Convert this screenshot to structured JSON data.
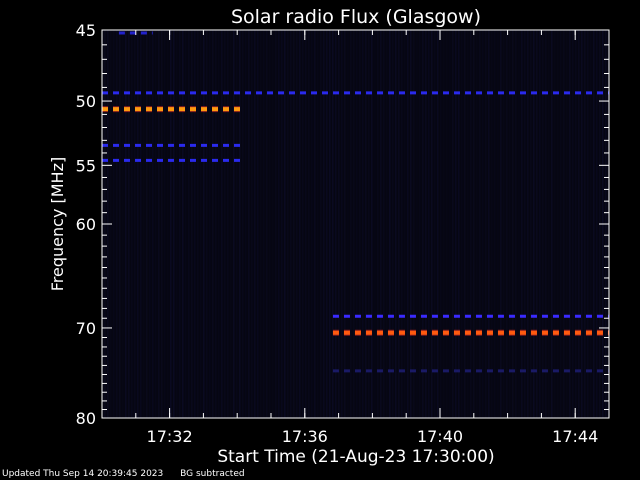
{
  "chart_data": {
    "type": "heatmap",
    "title": "Solar radio Flux (Glasgow)",
    "xlabel": "Start Time (21-Aug-23 17:30:00)",
    "ylabel": "Frequency [MHz]",
    "x_unit": "time",
    "xlim": [
      "17:30:00",
      "17:45:00"
    ],
    "ylim": [
      80,
      45
    ],
    "y_scale": "log",
    "x_ticks": [
      "17:32",
      "17:36",
      "17:40",
      "17:44"
    ],
    "y_ticks": [
      45,
      50,
      55,
      60,
      70,
      80
    ],
    "grid": false,
    "background_color": "#0a0a1e",
    "bands": [
      {
        "freq": 45.2,
        "start": "17:30:30",
        "end": "17:31:30",
        "color": "#2222cc"
      },
      {
        "freq": 49.4,
        "start": "17:30:00",
        "end": "17:45:00",
        "color": "#2a2aee"
      },
      {
        "freq": 50.6,
        "start": "17:30:00",
        "end": "17:34:10",
        "color": "#ff9a10"
      },
      {
        "freq": 53.4,
        "start": "17:30:00",
        "end": "17:34:10",
        "color": "#2a2aee"
      },
      {
        "freq": 54.6,
        "start": "17:30:00",
        "end": "17:34:10",
        "color": "#2a2aee"
      },
      {
        "freq": 68.8,
        "start": "17:36:50",
        "end": "17:45:00",
        "color": "#3a2aff"
      },
      {
        "freq": 70.5,
        "start": "17:36:50",
        "end": "17:45:00",
        "color": "#ff5a10"
      },
      {
        "freq": 74.6,
        "start": "17:36:50",
        "end": "17:45:00",
        "color": "#1a1a66"
      }
    ]
  },
  "footer": {
    "updated": "Updated Thu Sep 14 20:39:45 2023",
    "note": "BG subtracted"
  }
}
